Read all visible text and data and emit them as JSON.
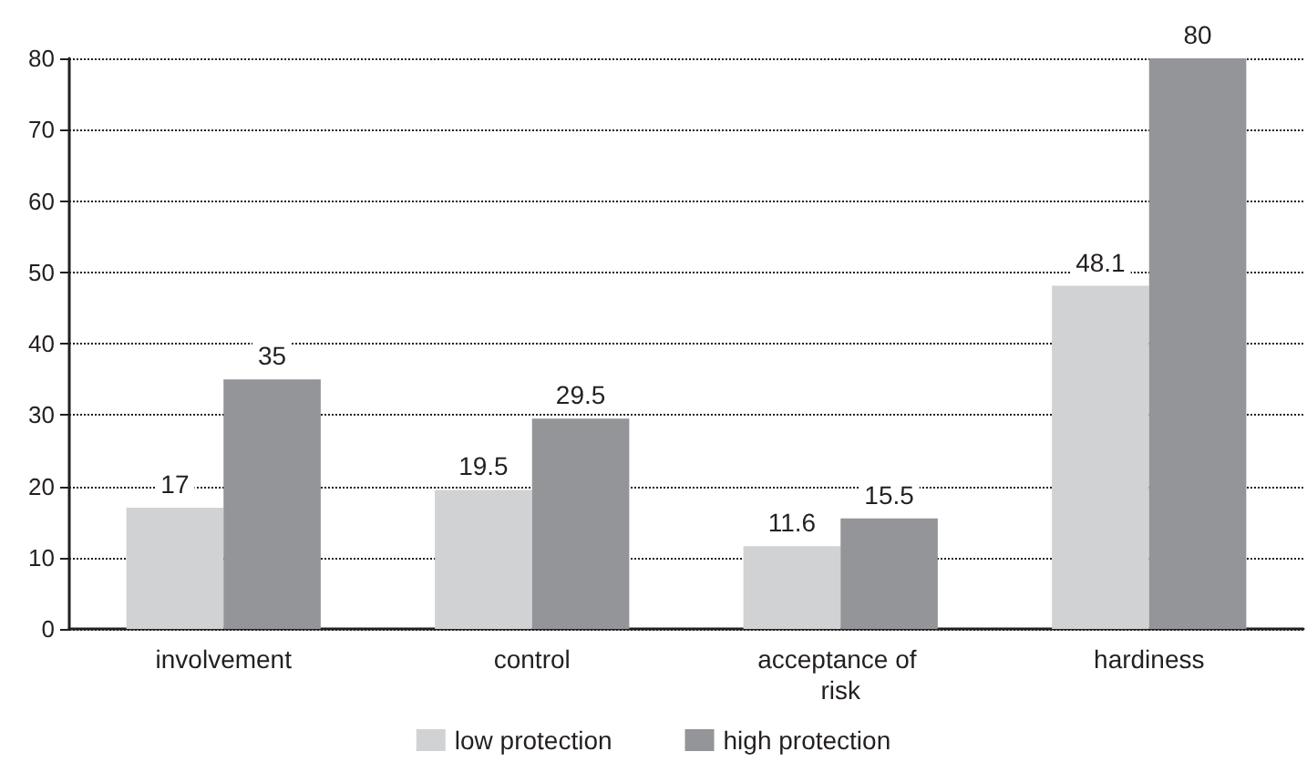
{
  "chart_data": {
    "type": "bar",
    "categories": [
      "involvement",
      "control",
      "acceptance of risk",
      "hardiness"
    ],
    "series": [
      {
        "name": "low protection",
        "color": "#d1d2d4",
        "values": [
          17,
          19.5,
          11.6,
          48.1
        ]
      },
      {
        "name": "high protection",
        "color": "#939598",
        "values": [
          35,
          29.5,
          15.5,
          80
        ]
      }
    ],
    "ylim": [
      0,
      80
    ],
    "yticks": [
      0,
      10,
      20,
      30,
      40,
      50,
      60,
      70,
      80
    ],
    "grid": "y",
    "legend": "bottom",
    "data_labels": true
  }
}
